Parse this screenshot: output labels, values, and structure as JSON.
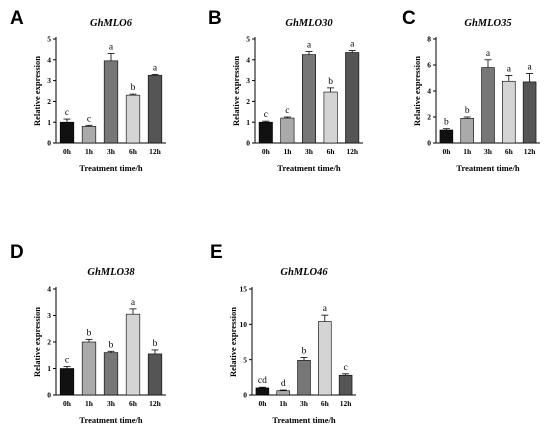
{
  "chart_data": [
    {
      "type": "bar",
      "panel": "A",
      "title": "GhMLO6",
      "xlabel": "Treatment time/h",
      "ylabel": "Relative expression",
      "categories": [
        "0h",
        "1h",
        "3h",
        "6h",
        "12h"
      ],
      "values": [
        1.0,
        0.8,
        3.95,
        2.3,
        3.25
      ],
      "errors": [
        0.15,
        0.05,
        0.35,
        0.05,
        0.05
      ],
      "labels": [
        "c",
        "c",
        "a",
        "b",
        "a"
      ],
      "ylim": [
        0,
        5
      ],
      "yticks": [
        0,
        1,
        2,
        3,
        4,
        5
      ]
    },
    {
      "type": "bar",
      "panel": "B",
      "title": "GhMLO30",
      "xlabel": "Treatment time/h",
      "ylabel": "Relative expression",
      "categories": [
        "0h",
        "1h",
        "3h",
        "6h",
        "12h"
      ],
      "values": [
        1.0,
        1.2,
        4.25,
        2.45,
        4.35
      ],
      "errors": [
        0.05,
        0.05,
        0.15,
        0.2,
        0.1
      ],
      "labels": [
        "c",
        "c",
        "a",
        "b",
        "a"
      ],
      "ylim": [
        0,
        5
      ],
      "yticks": [
        0,
        1,
        2,
        3,
        4,
        5
      ]
    },
    {
      "type": "bar",
      "panel": "C",
      "title": "GhMLO35",
      "xlabel": "Treatment time/h",
      "ylabel": "Relative expression",
      "categories": [
        "0h",
        "1h",
        "3h",
        "6h",
        "12h"
      ],
      "values": [
        1.0,
        1.9,
        5.8,
        4.75,
        4.7
      ],
      "errors": [
        0.1,
        0.1,
        0.6,
        0.45,
        0.65
      ],
      "labels": [
        "b",
        "b",
        "a",
        "a",
        "a"
      ],
      "ylim": [
        0,
        8
      ],
      "yticks": [
        0,
        2,
        4,
        6,
        8
      ]
    },
    {
      "type": "bar",
      "panel": "D",
      "title": "GhMLO38",
      "xlabel": "Treatment time/h",
      "ylabel": "Relative expression",
      "categories": [
        "0h",
        "1h",
        "3h",
        "6h",
        "12h"
      ],
      "values": [
        1.0,
        2.0,
        1.6,
        3.05,
        1.55
      ],
      "errors": [
        0.07,
        0.1,
        0.05,
        0.2,
        0.15
      ],
      "labels": [
        "c",
        "b",
        "b",
        "a",
        "b"
      ],
      "ylim": [
        0,
        4
      ],
      "yticks": [
        0,
        1,
        2,
        3,
        4
      ]
    },
    {
      "type": "bar",
      "panel": "E",
      "title": "GhMLO46",
      "xlabel": "Treatment time/h",
      "ylabel": "Relative expression",
      "categories": [
        "0h",
        "1h",
        "3h",
        "6h",
        "12h"
      ],
      "values": [
        1.0,
        0.6,
        4.9,
        10.4,
        2.8
      ],
      "errors": [
        0.1,
        0.1,
        0.4,
        0.9,
        0.2
      ],
      "labels": [
        "cd",
        "d",
        "b",
        "a",
        "c"
      ],
      "ylim": [
        0,
        15
      ],
      "yticks": [
        0,
        5,
        10,
        15
      ]
    }
  ],
  "bar_colors": [
    "#111111",
    "#aaaaaa",
    "#777777",
    "#d4d4d4",
    "#555555"
  ]
}
